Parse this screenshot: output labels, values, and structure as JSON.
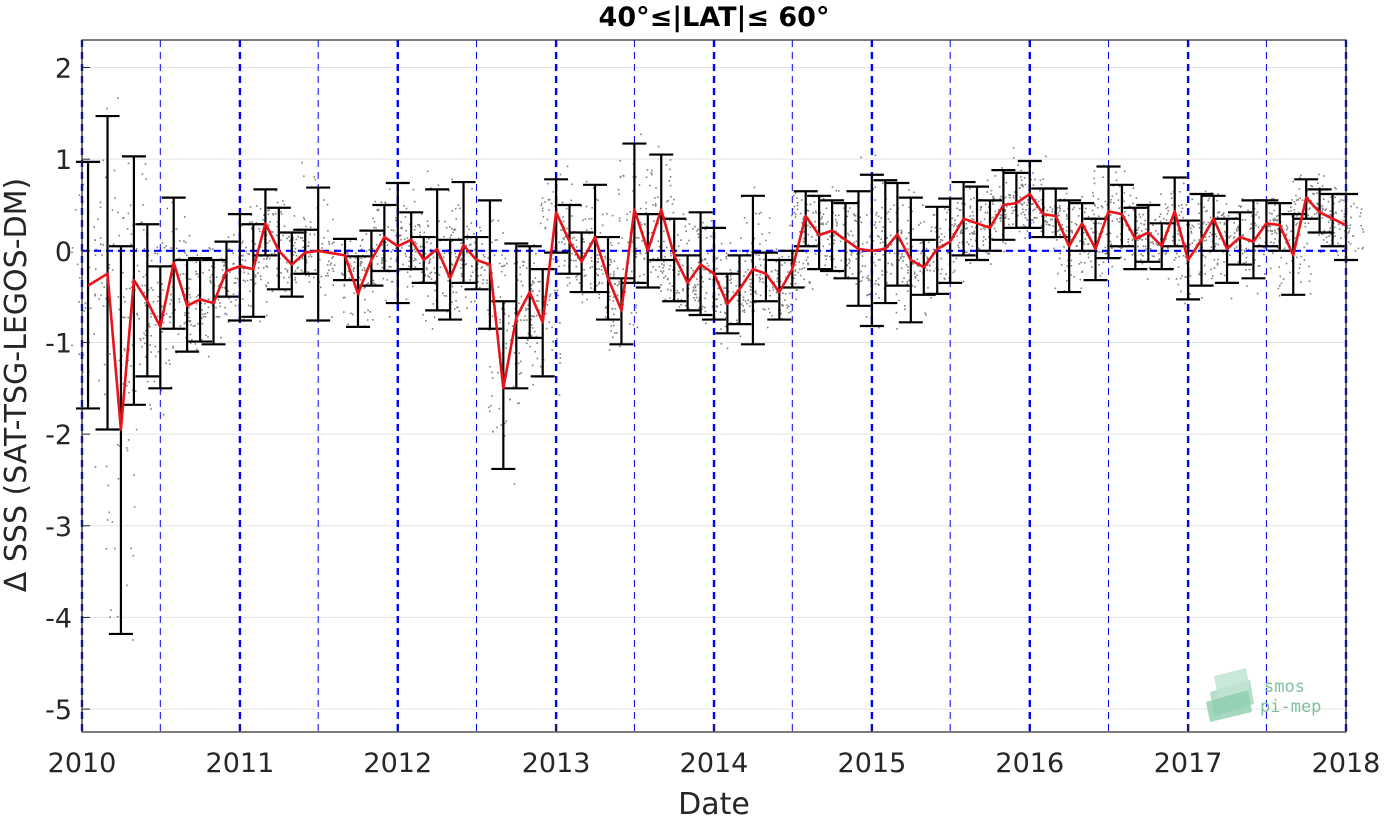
{
  "chart_data": {
    "type": "line",
    "title": "40°≤|LAT|≤ 60°",
    "xlabel": "Date",
    "ylabel": "Δ SSS (SAT-TSG-LEGOS-DM)",
    "xlim": [
      "2010-01-01",
      "2018-01-01"
    ],
    "ylim": [
      -5.25,
      2.3
    ],
    "x_ticks": [
      "2010",
      "2011",
      "2012",
      "2013",
      "2014",
      "2015",
      "2016",
      "2017",
      "2018"
    ],
    "y_ticks": [
      2,
      1,
      0,
      -1,
      -2,
      -3,
      -4,
      -5
    ],
    "y_tick_labels": [
      "2",
      "1",
      "0",
      "-1",
      "-2",
      "-3",
      "-4",
      "-5"
    ],
    "grid": true,
    "reference_line": {
      "y": 0,
      "style": "dashed",
      "color": "#0000ff"
    },
    "year_lines": {
      "style": "dashed",
      "color": "#0000ff"
    },
    "half_year_lines": {
      "style": "dashed",
      "color": "#0000ff"
    },
    "series": [
      {
        "kind": "monthly_mean",
        "color": "#e8141a",
        "points": [
          {
            "date": "2010-01-15",
            "y": -0.38,
            "lo": -1.72,
            "hi": 0.97
          },
          {
            "date": "2010-03-01",
            "y": -0.25,
            "lo": -1.95,
            "hi": 1.47
          },
          {
            "date": "2010-04-01",
            "y": -1.95,
            "lo": -4.18,
            "hi": 0.05
          },
          {
            "date": "2010-05-01",
            "y": -0.32,
            "lo": -1.68,
            "hi": 1.03
          },
          {
            "date": "2010-06-01",
            "y": -0.55,
            "lo": -1.37,
            "hi": 0.29
          },
          {
            "date": "2010-07-01",
            "y": -0.83,
            "lo": -1.5,
            "hi": -0.17
          },
          {
            "date": "2010-08-01",
            "y": -0.13,
            "lo": -0.85,
            "hi": 0.58
          },
          {
            "date": "2010-09-01",
            "y": -0.6,
            "lo": -1.1,
            "hi": -0.1
          },
          {
            "date": "2010-10-01",
            "y": -0.53,
            "lo": -0.99,
            "hi": -0.08
          },
          {
            "date": "2010-11-01",
            "y": -0.57,
            "lo": -1.02,
            "hi": -0.1
          },
          {
            "date": "2010-12-01",
            "y": -0.22,
            "lo": -0.5,
            "hi": 0.1
          },
          {
            "date": "2011-01-01",
            "y": -0.17,
            "lo": -0.76,
            "hi": 0.4
          },
          {
            "date": "2011-02-01",
            "y": -0.2,
            "lo": -0.72,
            "hi": 0.29
          },
          {
            "date": "2011-03-01",
            "y": 0.3,
            "lo": -0.05,
            "hi": 0.67
          },
          {
            "date": "2011-04-01",
            "y": 0.0,
            "lo": -0.42,
            "hi": 0.47
          },
          {
            "date": "2011-05-01",
            "y": -0.15,
            "lo": -0.5,
            "hi": 0.2
          },
          {
            "date": "2011-06-01",
            "y": -0.02,
            "lo": -0.25,
            "hi": 0.23
          },
          {
            "date": "2011-07-01",
            "y": 0.0,
            "lo": -0.76,
            "hi": 0.69
          },
          {
            "date": "2011-09-01",
            "y": -0.05,
            "lo": -0.32,
            "hi": 0.13
          },
          {
            "date": "2011-10-01",
            "y": -0.47,
            "lo": -0.83,
            "hi": -0.06
          },
          {
            "date": "2011-11-01",
            "y": -0.1,
            "lo": -0.38,
            "hi": 0.22
          },
          {
            "date": "2011-12-01",
            "y": 0.15,
            "lo": -0.22,
            "hi": 0.5
          },
          {
            "date": "2012-01-01",
            "y": 0.05,
            "lo": -0.57,
            "hi": 0.74
          },
          {
            "date": "2012-02-01",
            "y": 0.12,
            "lo": -0.2,
            "hi": 0.42
          },
          {
            "date": "2012-03-01",
            "y": -0.1,
            "lo": -0.35,
            "hi": 0.15
          },
          {
            "date": "2012-04-01",
            "y": 0.02,
            "lo": -0.65,
            "hi": 0.67
          },
          {
            "date": "2012-05-01",
            "y": -0.3,
            "lo": -0.75,
            "hi": 0.12
          },
          {
            "date": "2012-06-01",
            "y": 0.06,
            "lo": -0.35,
            "hi": 0.75
          },
          {
            "date": "2012-07-01",
            "y": -0.1,
            "lo": -0.42,
            "hi": 0.15
          },
          {
            "date": "2012-08-01",
            "y": -0.15,
            "lo": -0.85,
            "hi": 0.55
          },
          {
            "date": "2012-09-01",
            "y": -1.5,
            "lo": -2.38,
            "hi": -0.55
          },
          {
            "date": "2012-10-01",
            "y": -0.73,
            "lo": -1.5,
            "hi": 0.08
          },
          {
            "date": "2012-11-01",
            "y": -0.45,
            "lo": -0.95,
            "hi": 0.05
          },
          {
            "date": "2012-12-01",
            "y": -0.78,
            "lo": -1.37,
            "hi": -0.2
          },
          {
            "date": "2013-01-01",
            "y": 0.42,
            "lo": -0.02,
            "hi": 0.78
          },
          {
            "date": "2013-02-01",
            "y": 0.1,
            "lo": -0.25,
            "hi": 0.5
          },
          {
            "date": "2013-03-01",
            "y": -0.12,
            "lo": -0.45,
            "hi": 0.2
          },
          {
            "date": "2013-04-01",
            "y": 0.15,
            "lo": -0.45,
            "hi": 0.72
          },
          {
            "date": "2013-05-01",
            "y": -0.3,
            "lo": -0.75,
            "hi": 0.15
          },
          {
            "date": "2013-06-01",
            "y": -0.65,
            "lo": -1.02,
            "hi": -0.3
          },
          {
            "date": "2013-07-01",
            "y": 0.45,
            "lo": -0.35,
            "hi": 1.17
          },
          {
            "date": "2013-08-01",
            "y": 0.0,
            "lo": -0.4,
            "hi": 0.4
          },
          {
            "date": "2013-09-01",
            "y": 0.45,
            "lo": -0.1,
            "hi": 1.05
          },
          {
            "date": "2013-10-01",
            "y": -0.05,
            "lo": -0.55,
            "hi": 0.35
          },
          {
            "date": "2013-11-01",
            "y": -0.35,
            "lo": -0.65,
            "hi": -0.05
          },
          {
            "date": "2013-12-01",
            "y": -0.15,
            "lo": -0.7,
            "hi": 0.42
          },
          {
            "date": "2014-01-01",
            "y": -0.25,
            "lo": -0.75,
            "hi": 0.25
          },
          {
            "date": "2014-02-01",
            "y": -0.58,
            "lo": -0.9,
            "hi": -0.25
          },
          {
            "date": "2014-03-01",
            "y": -0.42,
            "lo": -0.8,
            "hi": -0.05
          },
          {
            "date": "2014-04-01",
            "y": -0.2,
            "lo": -1.02,
            "hi": 0.6
          },
          {
            "date": "2014-05-01",
            "y": -0.25,
            "lo": -0.55,
            "hi": -0.02
          },
          {
            "date": "2014-06-01",
            "y": -0.45,
            "lo": -0.75,
            "hi": -0.1
          },
          {
            "date": "2014-07-01",
            "y": -0.2,
            "lo": -0.4,
            "hi": 0.0
          },
          {
            "date": "2014-08-01",
            "y": 0.38,
            "lo": 0.05,
            "hi": 0.65
          },
          {
            "date": "2014-09-01",
            "y": 0.17,
            "lo": -0.2,
            "hi": 0.6
          },
          {
            "date": "2014-10-01",
            "y": 0.22,
            "lo": -0.22,
            "hi": 0.55
          },
          {
            "date": "2014-11-01",
            "y": 0.12,
            "lo": -0.3,
            "hi": 0.52
          },
          {
            "date": "2014-12-01",
            "y": 0.02,
            "lo": -0.6,
            "hi": 0.65
          },
          {
            "date": "2015-01-01",
            "y": 0.0,
            "lo": -0.82,
            "hi": 0.83
          },
          {
            "date": "2015-02-01",
            "y": 0.02,
            "lo": -0.57,
            "hi": 0.77
          },
          {
            "date": "2015-03-01",
            "y": 0.18,
            "lo": -0.38,
            "hi": 0.74
          },
          {
            "date": "2015-04-01",
            "y": -0.1,
            "lo": -0.78,
            "hi": 0.58
          },
          {
            "date": "2015-05-01",
            "y": -0.18,
            "lo": -0.48,
            "hi": 0.12
          },
          {
            "date": "2015-06-01",
            "y": 0.02,
            "lo": -0.47,
            "hi": 0.48
          },
          {
            "date": "2015-07-01",
            "y": 0.1,
            "lo": -0.35,
            "hi": 0.57
          },
          {
            "date": "2015-08-01",
            "y": 0.35,
            "lo": -0.05,
            "hi": 0.75
          },
          {
            "date": "2015-09-01",
            "y": 0.3,
            "lo": -0.1,
            "hi": 0.7
          },
          {
            "date": "2015-10-01",
            "y": 0.25,
            "lo": 0.0,
            "hi": 0.55
          },
          {
            "date": "2015-11-01",
            "y": 0.5,
            "lo": 0.12,
            "hi": 0.88
          },
          {
            "date": "2015-12-01",
            "y": 0.52,
            "lo": 0.25,
            "hi": 0.85
          },
          {
            "date": "2016-01-01",
            "y": 0.62,
            "lo": 0.25,
            "hi": 0.98
          },
          {
            "date": "2016-02-01",
            "y": 0.4,
            "lo": 0.15,
            "hi": 0.68
          },
          {
            "date": "2016-03-01",
            "y": 0.38,
            "lo": 0.15,
            "hi": 0.68
          },
          {
            "date": "2016-04-01",
            "y": 0.05,
            "lo": -0.45,
            "hi": 0.55
          },
          {
            "date": "2016-05-01",
            "y": 0.3,
            "lo": 0.0,
            "hi": 0.52
          },
          {
            "date": "2016-06-01",
            "y": 0.02,
            "lo": -0.32,
            "hi": 0.35
          },
          {
            "date": "2016-07-01",
            "y": 0.43,
            "lo": -0.08,
            "hi": 0.92
          },
          {
            "date": "2016-08-01",
            "y": 0.4,
            "lo": 0.05,
            "hi": 0.72
          },
          {
            "date": "2016-09-01",
            "y": 0.13,
            "lo": -0.2,
            "hi": 0.47
          },
          {
            "date": "2016-10-01",
            "y": 0.2,
            "lo": -0.12,
            "hi": 0.5
          },
          {
            "date": "2016-11-01",
            "y": 0.05,
            "lo": -0.2,
            "hi": 0.3
          },
          {
            "date": "2016-12-01",
            "y": 0.43,
            "lo": 0.05,
            "hi": 0.8
          },
          {
            "date": "2017-01-01",
            "y": -0.1,
            "lo": -0.53,
            "hi": 0.33
          },
          {
            "date": "2017-02-01",
            "y": 0.12,
            "lo": -0.38,
            "hi": 0.62
          },
          {
            "date": "2017-03-01",
            "y": 0.35,
            "lo": 0.0,
            "hi": 0.6
          },
          {
            "date": "2017-04-01",
            "y": 0.02,
            "lo": -0.35,
            "hi": 0.35
          },
          {
            "date": "2017-05-01",
            "y": 0.15,
            "lo": -0.15,
            "hi": 0.42
          },
          {
            "date": "2017-06-01",
            "y": 0.1,
            "lo": -0.3,
            "hi": 0.55
          },
          {
            "date": "2017-07-01",
            "y": 0.3,
            "lo": 0.05,
            "hi": 0.55
          },
          {
            "date": "2017-08-01",
            "y": 0.28,
            "lo": 0.0,
            "hi": 0.52
          },
          {
            "date": "2017-09-01",
            "y": -0.05,
            "lo": -0.48,
            "hi": 0.4
          },
          {
            "date": "2017-10-01",
            "y": 0.58,
            "lo": 0.35,
            "hi": 0.78
          },
          {
            "date": "2017-11-01",
            "y": 0.42,
            "lo": 0.2,
            "hi": 0.67
          },
          {
            "date": "2017-12-01",
            "y": 0.35,
            "lo": 0.05,
            "hi": 0.62
          },
          {
            "date": "2018-01-01",
            "y": 0.28,
            "lo": -0.1,
            "hi": 0.62
          }
        ]
      },
      {
        "kind": "individual_collocations",
        "color": "#808080",
        "marker": "dot",
        "note_shown_as": "scattered gray points around the monthly means"
      }
    ],
    "errorbar_color": "#000000"
  },
  "logo": {
    "line1": "smos",
    "line2": "pi-mep"
  }
}
